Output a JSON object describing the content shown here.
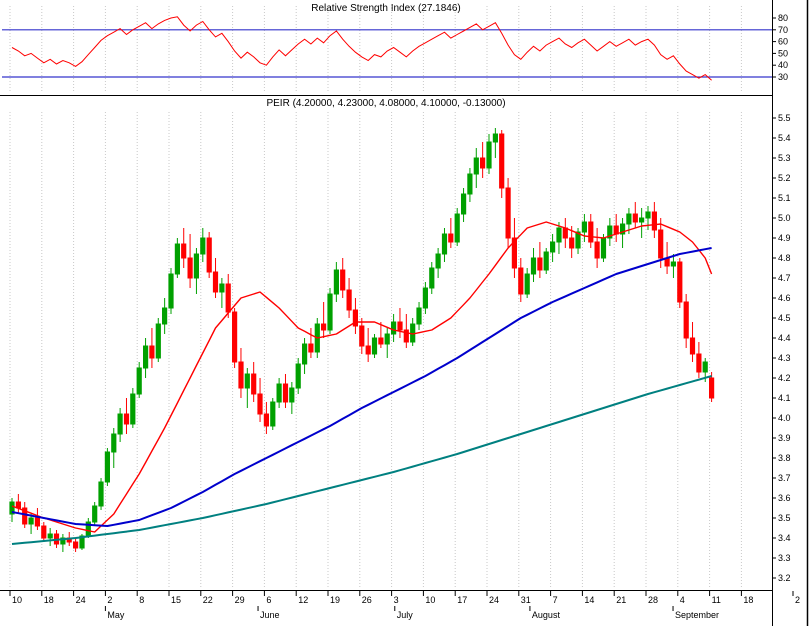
{
  "x_axis": {
    "grid_color": "#c8c8c8",
    "axis_color": "#000000",
    "day_labels": [
      "10",
      "18",
      "24",
      "2",
      "8",
      "15",
      "22",
      "29",
      "6",
      "12",
      "19",
      "26",
      "3",
      "10",
      "17",
      "24",
      "31",
      "7",
      "14",
      "21",
      "28",
      "4",
      "11",
      "18",
      "2"
    ],
    "month_labels": [
      {
        "text": "May",
        "week": 3.0
      },
      {
        "text": "June",
        "week": 7.8
      },
      {
        "text": "July",
        "week": 12.1
      },
      {
        "text": "August",
        "week": 16.35
      },
      {
        "text": "September",
        "week": 20.85
      }
    ]
  },
  "chart_data": [
    {
      "type": "line",
      "name": "RSI",
      "title": "Relative Strength Index (27.1846)",
      "last_value": 27.1846,
      "ylim": [
        17,
        89
      ],
      "yticks": [
        80,
        70,
        60,
        50,
        40,
        30
      ],
      "hlines": [
        70,
        30
      ],
      "line_color": "#ff0000",
      "hline_color": "#3434cc",
      "values": [
        55,
        52,
        48,
        50,
        46,
        42,
        45,
        41,
        44,
        42,
        39,
        43,
        49,
        55,
        61,
        65,
        68,
        71,
        66,
        70,
        73,
        76,
        71,
        75,
        78,
        80,
        81,
        74,
        69,
        74,
        77,
        70,
        64,
        67,
        60,
        52,
        46,
        51,
        47,
        42,
        40,
        47,
        53,
        48,
        53,
        58,
        62,
        58,
        63,
        59,
        65,
        69,
        62,
        56,
        51,
        47,
        44,
        49,
        47,
        52,
        55,
        51,
        47,
        52,
        56,
        59,
        62,
        65,
        68,
        63,
        66,
        69,
        72,
        75,
        70,
        73,
        76,
        67,
        57,
        49,
        45,
        51,
        56,
        52,
        57,
        60,
        63,
        58,
        55,
        59,
        62,
        57,
        52,
        56,
        60,
        56,
        59,
        62,
        57,
        60,
        62,
        57,
        49,
        45,
        48,
        41,
        35,
        32,
        29,
        32,
        27.18
      ]
    },
    {
      "type": "candlestick",
      "name": "PEIR",
      "title": "PEIR (4.20000, 4.23000, 4.08000, 4.10000, -0.13000)",
      "ohlc_label": {
        "open": "4.20000",
        "high": "4.23000",
        "low": "4.08000",
        "close": "4.10000",
        "change": "-0.13000"
      },
      "ylim": [
        3.15,
        5.58
      ],
      "yticks": [
        "5.5",
        "5.4",
        "5.3",
        "5.2",
        "5.1",
        "5.0",
        "4.9",
        "4.8",
        "4.7",
        "4.6",
        "4.5",
        "4.4",
        "4.3",
        "4.2",
        "4.1",
        "4.0",
        "3.9",
        "3.8",
        "3.7",
        "3.6",
        "3.5",
        "3.4",
        "3.3",
        "3.2"
      ],
      "up_color": "#00a000",
      "down_color": "#ff0000",
      "candles": [
        [
          3.52,
          3.6,
          3.48,
          3.58
        ],
        [
          3.58,
          3.62,
          3.52,
          3.55
        ],
        [
          3.55,
          3.58,
          3.45,
          3.47
        ],
        [
          3.47,
          3.52,
          3.42,
          3.5
        ],
        [
          3.5,
          3.55,
          3.44,
          3.46
        ],
        [
          3.46,
          3.48,
          3.38,
          3.4
        ],
        [
          3.4,
          3.45,
          3.36,
          3.42
        ],
        [
          3.42,
          3.44,
          3.35,
          3.37
        ],
        [
          3.37,
          3.42,
          3.33,
          3.4
        ],
        [
          3.4,
          3.43,
          3.36,
          3.38
        ],
        [
          3.38,
          3.4,
          3.33,
          3.35
        ],
        [
          3.35,
          3.42,
          3.34,
          3.41
        ],
        [
          3.41,
          3.5,
          3.4,
          3.48
        ],
        [
          3.48,
          3.58,
          3.46,
          3.56
        ],
        [
          3.56,
          3.7,
          3.54,
          3.68
        ],
        [
          3.68,
          3.85,
          3.66,
          3.83
        ],
        [
          3.83,
          3.95,
          3.75,
          3.92
        ],
        [
          3.92,
          4.05,
          3.88,
          4.02
        ],
        [
          4.02,
          4.1,
          3.92,
          3.97
        ],
        [
          3.97,
          4.15,
          3.95,
          4.12
        ],
        [
          4.12,
          4.28,
          4.1,
          4.25
        ],
        [
          4.25,
          4.4,
          4.2,
          4.36
        ],
        [
          4.36,
          4.45,
          4.25,
          4.3
        ],
        [
          4.3,
          4.5,
          4.28,
          4.47
        ],
        [
          4.47,
          4.6,
          4.42,
          4.55
        ],
        [
          4.55,
          4.75,
          4.52,
          4.72
        ],
        [
          4.72,
          4.9,
          4.7,
          4.87
        ],
        [
          4.87,
          4.95,
          4.75,
          4.8
        ],
        [
          4.8,
          4.92,
          4.65,
          4.7
        ],
        [
          4.7,
          4.85,
          4.62,
          4.82
        ],
        [
          4.82,
          4.95,
          4.78,
          4.9
        ],
        [
          4.9,
          4.93,
          4.7,
          4.73
        ],
        [
          4.73,
          4.8,
          4.6,
          4.63
        ],
        [
          4.63,
          4.7,
          4.55,
          4.67
        ],
        [
          4.67,
          4.72,
          4.5,
          4.53
        ],
        [
          4.53,
          4.55,
          4.25,
          4.28
        ],
        [
          4.28,
          4.35,
          4.1,
          4.15
        ],
        [
          4.15,
          4.25,
          4.05,
          4.22
        ],
        [
          4.22,
          4.28,
          4.08,
          4.12
        ],
        [
          4.12,
          4.2,
          3.98,
          4.02
        ],
        [
          4.02,
          4.08,
          3.92,
          3.96
        ],
        [
          3.96,
          4.1,
          3.94,
          4.08
        ],
        [
          4.08,
          4.2,
          4.05,
          4.17
        ],
        [
          4.17,
          4.22,
          4.05,
          4.08
        ],
        [
          4.08,
          4.18,
          4.02,
          4.15
        ],
        [
          4.15,
          4.3,
          4.12,
          4.27
        ],
        [
          4.27,
          4.4,
          4.22,
          4.37
        ],
        [
          4.37,
          4.45,
          4.3,
          4.33
        ],
        [
          4.33,
          4.5,
          4.3,
          4.47
        ],
        [
          4.47,
          4.58,
          4.4,
          4.44
        ],
        [
          4.44,
          4.65,
          4.42,
          4.62
        ],
        [
          4.62,
          4.78,
          4.58,
          4.74
        ],
        [
          4.74,
          4.8,
          4.6,
          4.64
        ],
        [
          4.64,
          4.7,
          4.5,
          4.54
        ],
        [
          4.54,
          4.6,
          4.42,
          4.46
        ],
        [
          4.46,
          4.5,
          4.32,
          4.36
        ],
        [
          4.36,
          4.45,
          4.28,
          4.32
        ],
        [
          4.32,
          4.42,
          4.3,
          4.4
        ],
        [
          4.4,
          4.48,
          4.35,
          4.37
        ],
        [
          4.37,
          4.45,
          4.3,
          4.42
        ],
        [
          4.42,
          4.52,
          4.38,
          4.48
        ],
        [
          4.48,
          4.55,
          4.4,
          4.44
        ],
        [
          4.44,
          4.52,
          4.35,
          4.38
        ],
        [
          4.38,
          4.5,
          4.36,
          4.47
        ],
        [
          4.47,
          4.58,
          4.44,
          4.55
        ],
        [
          4.55,
          4.68,
          4.52,
          4.65
        ],
        [
          4.65,
          4.78,
          4.62,
          4.75
        ],
        [
          4.75,
          4.85,
          4.7,
          4.82
        ],
        [
          4.82,
          4.95,
          4.78,
          4.92
        ],
        [
          4.92,
          5.0,
          4.85,
          4.88
        ],
        [
          4.88,
          5.05,
          4.86,
          5.02
        ],
        [
          5.02,
          5.15,
          4.98,
          5.12
        ],
        [
          5.12,
          5.25,
          5.08,
          5.22
        ],
        [
          5.22,
          5.35,
          5.15,
          5.3
        ],
        [
          5.3,
          5.38,
          5.2,
          5.25
        ],
        [
          5.25,
          5.42,
          5.22,
          5.38
        ],
        [
          5.38,
          5.45,
          5.3,
          5.42
        ],
        [
          5.42,
          5.44,
          5.1,
          5.15
        ],
        [
          5.15,
          5.2,
          4.85,
          4.9
        ],
        [
          4.9,
          5.0,
          4.7,
          4.75
        ],
        [
          4.75,
          4.8,
          4.58,
          4.62
        ],
        [
          4.62,
          4.75,
          4.6,
          4.72
        ],
        [
          4.72,
          4.85,
          4.68,
          4.8
        ],
        [
          4.8,
          4.88,
          4.7,
          4.74
        ],
        [
          4.74,
          4.85,
          4.72,
          4.83
        ],
        [
          4.83,
          4.92,
          4.78,
          4.88
        ],
        [
          4.88,
          4.98,
          4.82,
          4.95
        ],
        [
          4.95,
          5.0,
          4.85,
          4.9
        ],
        [
          4.9,
          4.96,
          4.8,
          4.85
        ],
        [
          4.85,
          4.95,
          4.82,
          4.93
        ],
        [
          4.93,
          5.02,
          4.88,
          4.98
        ],
        [
          4.98,
          5.02,
          4.85,
          4.88
        ],
        [
          4.88,
          4.95,
          4.75,
          4.8
        ],
        [
          4.8,
          4.92,
          4.78,
          4.9
        ],
        [
          4.9,
          5.0,
          4.86,
          4.96
        ],
        [
          4.96,
          5.02,
          4.88,
          4.92
        ],
        [
          4.92,
          5.0,
          4.85,
          4.97
        ],
        [
          4.97,
          5.05,
          4.92,
          5.02
        ],
        [
          5.02,
          5.08,
          4.95,
          4.98
        ],
        [
          4.98,
          5.05,
          4.9,
          5.0
        ],
        [
          5.0,
          5.06,
          4.94,
          5.03
        ],
        [
          5.03,
          5.08,
          4.9,
          4.94
        ],
        [
          4.94,
          5.0,
          4.75,
          4.8
        ],
        [
          4.8,
          4.88,
          4.72,
          4.76
        ],
        [
          4.76,
          4.82,
          4.7,
          4.78
        ],
        [
          4.78,
          4.8,
          4.55,
          4.58
        ],
        [
          4.58,
          4.62,
          4.35,
          4.4
        ],
        [
          4.4,
          4.48,
          4.28,
          4.32
        ],
        [
          4.32,
          4.38,
          4.2,
          4.23
        ],
        [
          4.23,
          4.3,
          4.18,
          4.28
        ],
        [
          4.2,
          4.23,
          4.08,
          4.1
        ]
      ],
      "overlays": [
        {
          "name": "ma-fast",
          "color": "#ff0000",
          "width": 1.4,
          "points": [
            [
              0,
              3.56
            ],
            [
              5,
              3.5
            ],
            [
              10,
              3.45
            ],
            [
              13,
              3.43
            ],
            [
              16,
              3.52
            ],
            [
              20,
              3.72
            ],
            [
              24,
              3.95
            ],
            [
              28,
              4.2
            ],
            [
              32,
              4.45
            ],
            [
              36,
              4.6
            ],
            [
              39,
              4.63
            ],
            [
              42,
              4.55
            ],
            [
              45,
              4.45
            ],
            [
              48,
              4.4
            ],
            [
              51,
              4.42
            ],
            [
              54,
              4.48
            ],
            [
              57,
              4.48
            ],
            [
              60,
              4.44
            ],
            [
              63,
              4.42
            ],
            [
              66,
              4.44
            ],
            [
              69,
              4.5
            ],
            [
              72,
              4.6
            ],
            [
              75,
              4.72
            ],
            [
              78,
              4.85
            ],
            [
              81,
              4.95
            ],
            [
              84,
              4.98
            ],
            [
              87,
              4.95
            ],
            [
              90,
              4.91
            ],
            [
              93,
              4.9
            ],
            [
              96,
              4.93
            ],
            [
              99,
              4.96
            ],
            [
              102,
              4.97
            ],
            [
              105,
              4.93
            ],
            [
              107,
              4.88
            ],
            [
              109,
              4.8
            ],
            [
              110,
              4.72
            ]
          ]
        },
        {
          "name": "ma-medium",
          "color": "#0000cc",
          "width": 2,
          "points": [
            [
              0,
              3.53
            ],
            [
              5,
              3.5
            ],
            [
              10,
              3.47
            ],
            [
              15,
              3.46
            ],
            [
              20,
              3.49
            ],
            [
              25,
              3.55
            ],
            [
              30,
              3.63
            ],
            [
              35,
              3.72
            ],
            [
              40,
              3.8
            ],
            [
              45,
              3.88
            ],
            [
              50,
              3.96
            ],
            [
              55,
              4.05
            ],
            [
              60,
              4.13
            ],
            [
              65,
              4.21
            ],
            [
              70,
              4.3
            ],
            [
              75,
              4.4
            ],
            [
              80,
              4.5
            ],
            [
              85,
              4.58
            ],
            [
              90,
              4.65
            ],
            [
              95,
              4.72
            ],
            [
              100,
              4.77
            ],
            [
              105,
              4.82
            ],
            [
              110,
              4.85
            ]
          ]
        },
        {
          "name": "ma-slow",
          "color": "#008080",
          "width": 2,
          "points": [
            [
              0,
              3.37
            ],
            [
              10,
              3.4
            ],
            [
              20,
              3.44
            ],
            [
              30,
              3.5
            ],
            [
              40,
              3.57
            ],
            [
              50,
              3.65
            ],
            [
              60,
              3.73
            ],
            [
              70,
              3.82
            ],
            [
              80,
              3.92
            ],
            [
              90,
              4.02
            ],
            [
              100,
              4.12
            ],
            [
              110,
              4.21
            ]
          ]
        }
      ]
    }
  ]
}
